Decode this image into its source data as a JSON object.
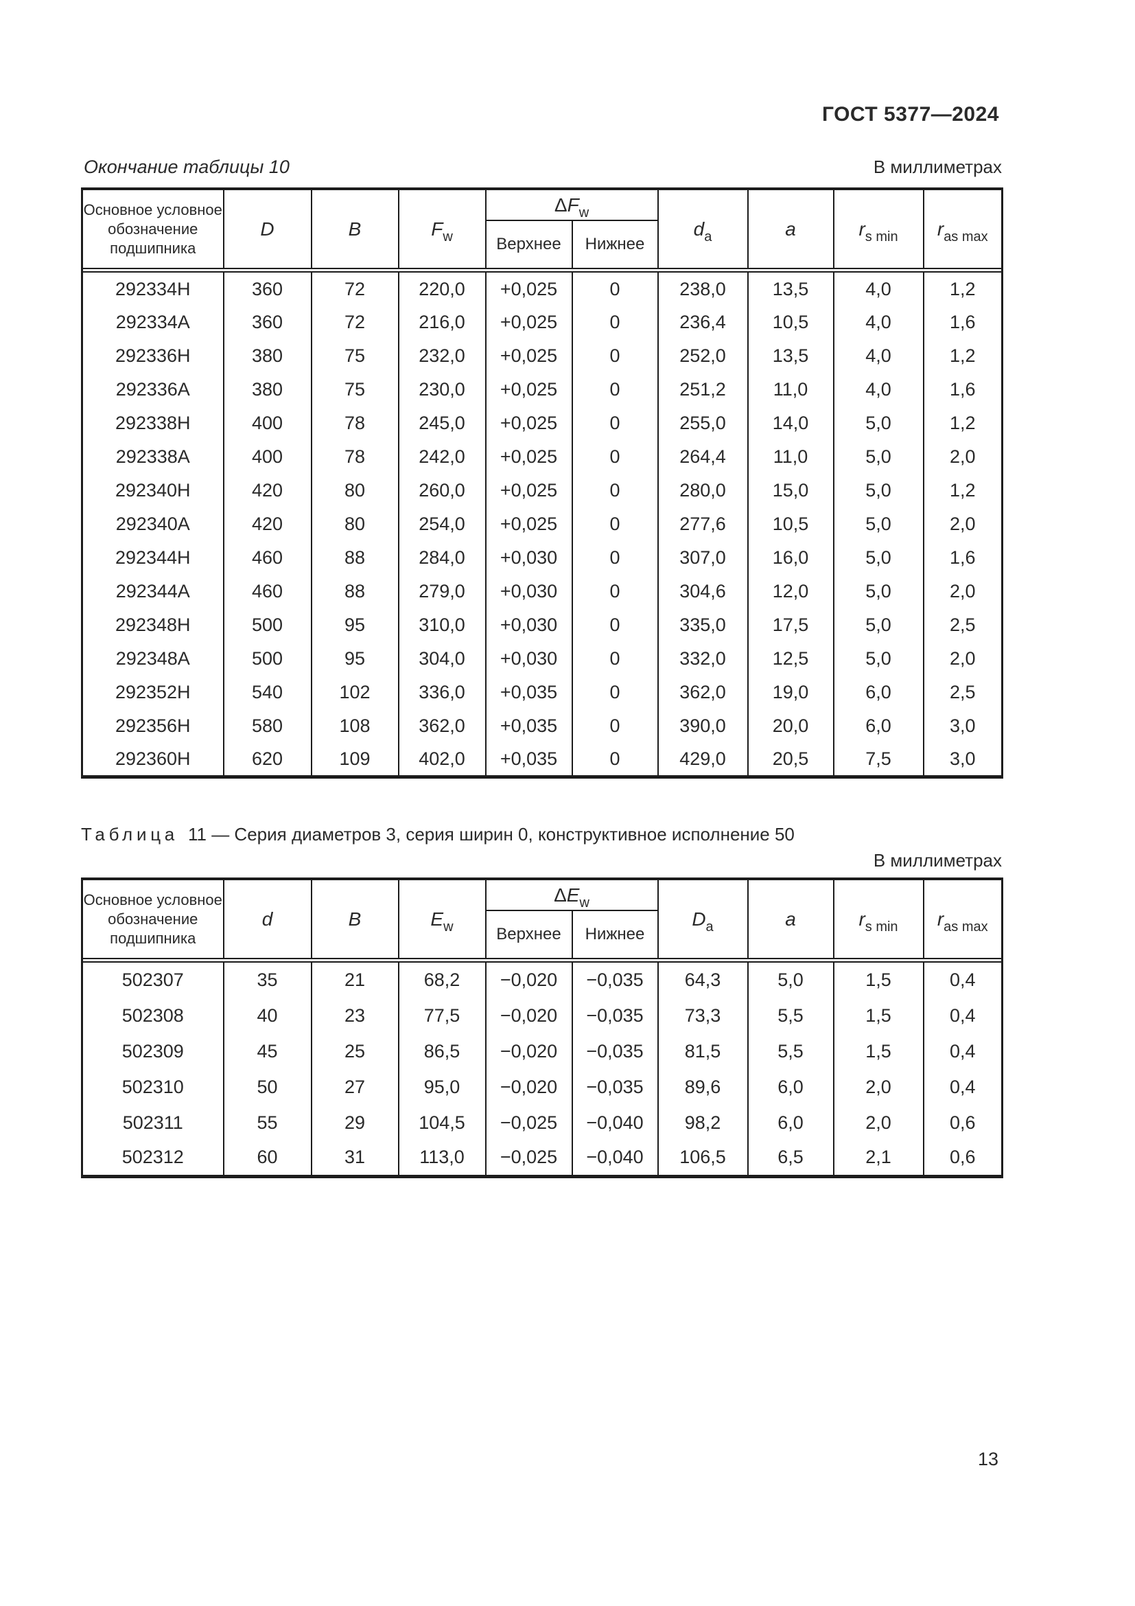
{
  "page": {
    "standard": "ГОСТ 5377—2024",
    "number": "13"
  },
  "t10": {
    "caption": "Окончание таблицы 10",
    "units": "В миллиметрах",
    "header": {
      "name": "Основное условное обозначение подшипника",
      "c_outer": {
        "sym": "D"
      },
      "c_width": {
        "sym": "B"
      },
      "c_bore": {
        "sym": "F",
        "sub": "w"
      },
      "delta": {
        "pre": "Δ",
        "sym": "F",
        "sub": "w"
      },
      "upper": "Верхнее",
      "lower": "Нижнее",
      "c_da": {
        "sym": "d",
        "sub": "a"
      },
      "c_a": {
        "sym": "a"
      },
      "c_rs": {
        "sym": "r",
        "sub": "s min"
      },
      "c_ras": {
        "sym": "r",
        "sub": "as max"
      }
    },
    "rows": [
      [
        "292334Н",
        "360",
        "72",
        "220,0",
        "+0,025",
        "0",
        "238,0",
        "13,5",
        "4,0",
        "1,2"
      ],
      [
        "292334А",
        "360",
        "72",
        "216,0",
        "+0,025",
        "0",
        "236,4",
        "10,5",
        "4,0",
        "1,6"
      ],
      [
        "292336Н",
        "380",
        "75",
        "232,0",
        "+0,025",
        "0",
        "252,0",
        "13,5",
        "4,0",
        "1,2"
      ],
      [
        "292336А",
        "380",
        "75",
        "230,0",
        "+0,025",
        "0",
        "251,2",
        "11,0",
        "4,0",
        "1,6"
      ],
      [
        "292338Н",
        "400",
        "78",
        "245,0",
        "+0,025",
        "0",
        "255,0",
        "14,0",
        "5,0",
        "1,2"
      ],
      [
        "292338А",
        "400",
        "78",
        "242,0",
        "+0,025",
        "0",
        "264,4",
        "11,0",
        "5,0",
        "2,0"
      ],
      [
        "292340Н",
        "420",
        "80",
        "260,0",
        "+0,025",
        "0",
        "280,0",
        "15,0",
        "5,0",
        "1,2"
      ],
      [
        "292340А",
        "420",
        "80",
        "254,0",
        "+0,025",
        "0",
        "277,6",
        "10,5",
        "5,0",
        "2,0"
      ],
      [
        "292344Н",
        "460",
        "88",
        "284,0",
        "+0,030",
        "0",
        "307,0",
        "16,0",
        "5,0",
        "1,6"
      ],
      [
        "292344А",
        "460",
        "88",
        "279,0",
        "+0,030",
        "0",
        "304,6",
        "12,0",
        "5,0",
        "2,0"
      ],
      [
        "292348Н",
        "500",
        "95",
        "310,0",
        "+0,030",
        "0",
        "335,0",
        "17,5",
        "5,0",
        "2,5"
      ],
      [
        "292348А",
        "500",
        "95",
        "304,0",
        "+0,030",
        "0",
        "332,0",
        "12,5",
        "5,0",
        "2,0"
      ],
      [
        "292352Н",
        "540",
        "102",
        "336,0",
        "+0,035",
        "0",
        "362,0",
        "19,0",
        "6,0",
        "2,5"
      ],
      [
        "292356Н",
        "580",
        "108",
        "362,0",
        "+0,035",
        "0",
        "390,0",
        "20,0",
        "6,0",
        "3,0"
      ],
      [
        "292360Н",
        "620",
        "109",
        "402,0",
        "+0,035",
        "0",
        "429,0",
        "20,5",
        "7,5",
        "3,0"
      ]
    ]
  },
  "t11": {
    "title_label": "Таблица",
    "title_text": "11 — Серия диаметров 3, серия ширин 0, конструктивное исполнение 50",
    "units": "В миллиметрах",
    "header": {
      "name": "Основное условное обозначение подшипника",
      "c_outer": {
        "sym": "d"
      },
      "c_width": {
        "sym": "B"
      },
      "c_bore": {
        "sym": "E",
        "sub": "w"
      },
      "delta": {
        "pre": "Δ",
        "sym": "E",
        "sub": "w"
      },
      "upper": "Верхнее",
      "lower": "Нижнее",
      "c_da": {
        "sym": "D",
        "sub": "a"
      },
      "c_a": {
        "sym": "a"
      },
      "c_rs": {
        "sym": "r",
        "sub": "s min"
      },
      "c_ras": {
        "sym": "r",
        "sub": "as max"
      }
    },
    "rows": [
      [
        "502307",
        "35",
        "21",
        "68,2",
        "−0,020",
        "−0,035",
        "64,3",
        "5,0",
        "1,5",
        "0,4"
      ],
      [
        "502308",
        "40",
        "23",
        "77,5",
        "−0,020",
        "−0,035",
        "73,3",
        "5,5",
        "1,5",
        "0,4"
      ],
      [
        "502309",
        "45",
        "25",
        "86,5",
        "−0,020",
        "−0,035",
        "81,5",
        "5,5",
        "1,5",
        "0,4"
      ],
      [
        "502310",
        "50",
        "27",
        "95,0",
        "−0,020",
        "−0,035",
        "89,6",
        "6,0",
        "2,0",
        "0,4"
      ],
      [
        "502311",
        "55",
        "29",
        "104,5",
        "−0,025",
        "−0,040",
        "98,2",
        "6,0",
        "2,0",
        "0,6"
      ],
      [
        "502312",
        "60",
        "31",
        "113,0",
        "−0,025",
        "−0,040",
        "106,5",
        "6,5",
        "2,1",
        "0,6"
      ]
    ]
  }
}
